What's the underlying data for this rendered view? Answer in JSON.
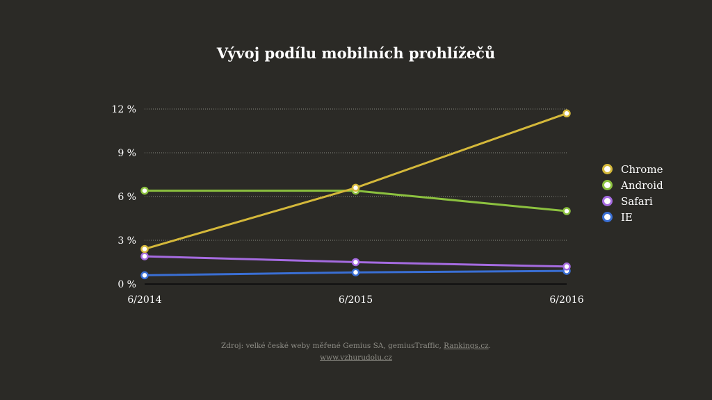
{
  "chart_data": {
    "type": "line",
    "title": "Vývoj podílu mobilních prohlížečů",
    "categories": [
      "6/2014",
      "6/2015",
      "6/2016"
    ],
    "y_ticks": [
      "0 %",
      "3 %",
      "6 %",
      "9 %",
      "12 %"
    ],
    "ylim": [
      0,
      12
    ],
    "y_tick_values": [
      0,
      3,
      6,
      9,
      12
    ],
    "grid": true,
    "legend_position": "right",
    "series": [
      {
        "name": "Chrome",
        "color": "#d4b83a",
        "values": [
          2.4,
          6.6,
          11.7
        ]
      },
      {
        "name": "Android",
        "color": "#8cc13f",
        "values": [
          6.4,
          6.4,
          5.0
        ]
      },
      {
        "name": "Safari",
        "color": "#a56be0",
        "values": [
          1.9,
          1.5,
          1.2
        ]
      },
      {
        "name": "IE",
        "color": "#3a6fd4",
        "values": [
          0.6,
          0.8,
          0.9
        ]
      }
    ]
  },
  "source": {
    "text": "Zdroj: velké české weby měřené Gemius SA, gemiusTraffic,",
    "link_text": "Rankings.cz",
    "link_suffix": ".",
    "site": "www.vzhurudolu.cz"
  }
}
